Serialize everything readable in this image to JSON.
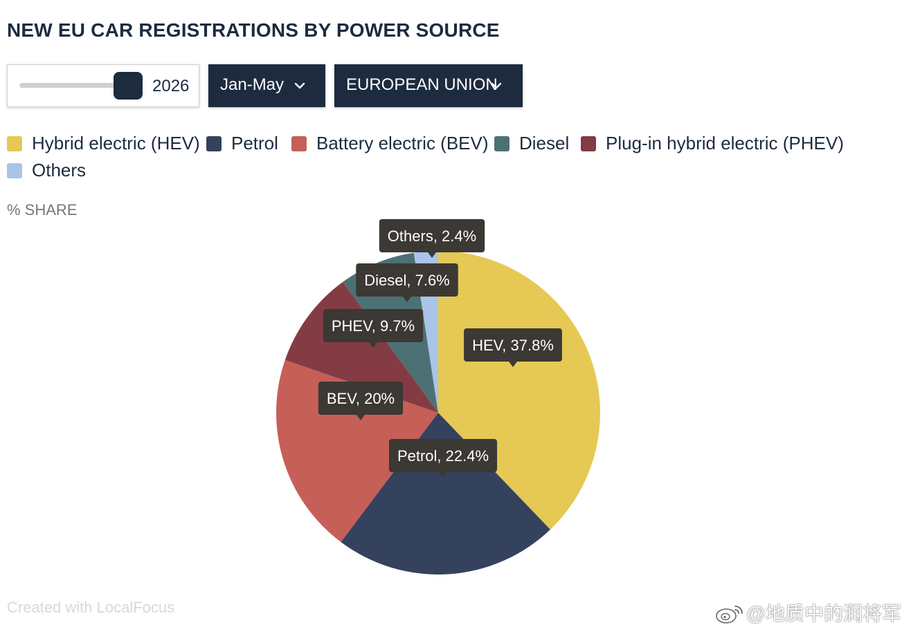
{
  "title": "NEW EU CAR REGISTRATIONS BY POWER SOURCE",
  "controls": {
    "year": "2026",
    "period": "Jan-May",
    "region": "EUROPEAN UNION"
  },
  "unit_label": "% SHARE",
  "credit": "Created with LocalFocus",
  "watermark": "@地质中的润将军",
  "legend": [
    {
      "label": "Hybrid electric (HEV)",
      "color": "#e5c954"
    },
    {
      "label": "Petrol",
      "color": "#34425e"
    },
    {
      "label": "Battery electric (BEV)",
      "color": "#c65f57"
    },
    {
      "label": "Diesel",
      "color": "#4c7174"
    },
    {
      "label": "Plug-in hybrid electric (PHEV)",
      "color": "#833c44"
    },
    {
      "label": "Others",
      "color": "#a9c4e8"
    }
  ],
  "chart_data": {
    "type": "pie",
    "categories": [
      "HEV",
      "Petrol",
      "BEV",
      "PHEV",
      "Diesel",
      "Others"
    ],
    "values": [
      37.8,
      22.4,
      20,
      9.7,
      7.6,
      2.4
    ],
    "data_labels": [
      "HEV, 37.8%",
      "Petrol, 22.4%",
      "BEV, 20%",
      "PHEV, 9.7%",
      "Diesel, 7.6%",
      "Others, 2.4%"
    ],
    "colors": [
      "#e5c954",
      "#34425e",
      "#c65f57",
      "#833c44",
      "#4c7174",
      "#a9c4e8"
    ],
    "unit": "%"
  }
}
